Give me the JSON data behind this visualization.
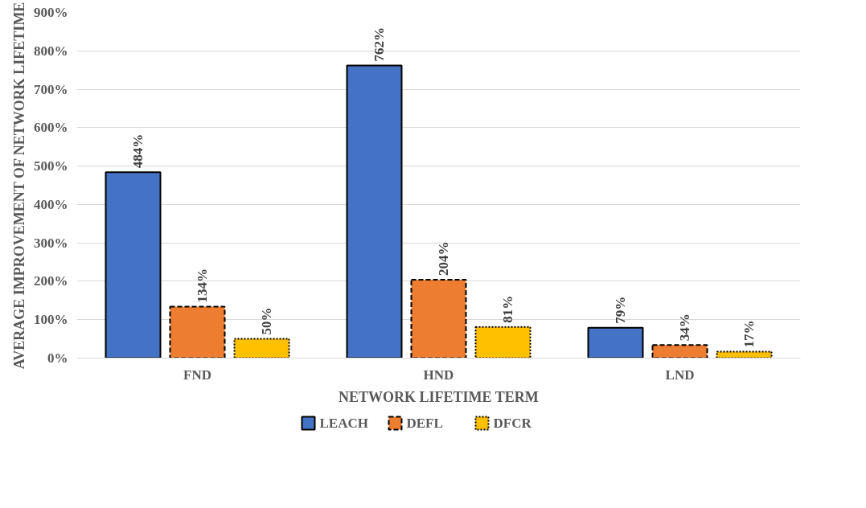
{
  "chart_data": {
    "type": "bar",
    "xlabel": "NETWORK LIFETIME TERM",
    "ylabel": "AVERAGE IMPROVEMENT OF NETWORK LIFETIME",
    "categories": [
      "FND",
      "HND",
      "LND"
    ],
    "series": [
      {
        "name": "LEACH",
        "color": "#4472c4",
        "line_style": "solid",
        "values": [
          484,
          762,
          79
        ],
        "value_labels": [
          "484%",
          "762%",
          "79%"
        ]
      },
      {
        "name": "DEFL",
        "color": "#ed7d31",
        "line_style": "dashed",
        "values": [
          134,
          204,
          34
        ],
        "value_labels": [
          "134%",
          "204%",
          "34%"
        ]
      },
      {
        "name": "DFCR",
        "color": "#ffc000",
        "line_style": "dotted",
        "values": [
          50,
          81,
          17
        ],
        "value_labels": [
          "50%",
          "81%",
          "17%"
        ]
      }
    ],
    "ylim": [
      0,
      900
    ],
    "yticks": [
      {
        "value": 0,
        "label": "0%"
      },
      {
        "value": 100,
        "label": "100%"
      },
      {
        "value": 200,
        "label": "200%"
      },
      {
        "value": 300,
        "label": "300%"
      },
      {
        "value": 400,
        "label": "400%"
      },
      {
        "value": 500,
        "label": "500%"
      },
      {
        "value": 600,
        "label": "600%"
      },
      {
        "value": 700,
        "label": "700%"
      },
      {
        "value": 800,
        "label": "800%"
      },
      {
        "value": 900,
        "label": "900%"
      }
    ],
    "grid": "y",
    "legend": "bottom"
  }
}
